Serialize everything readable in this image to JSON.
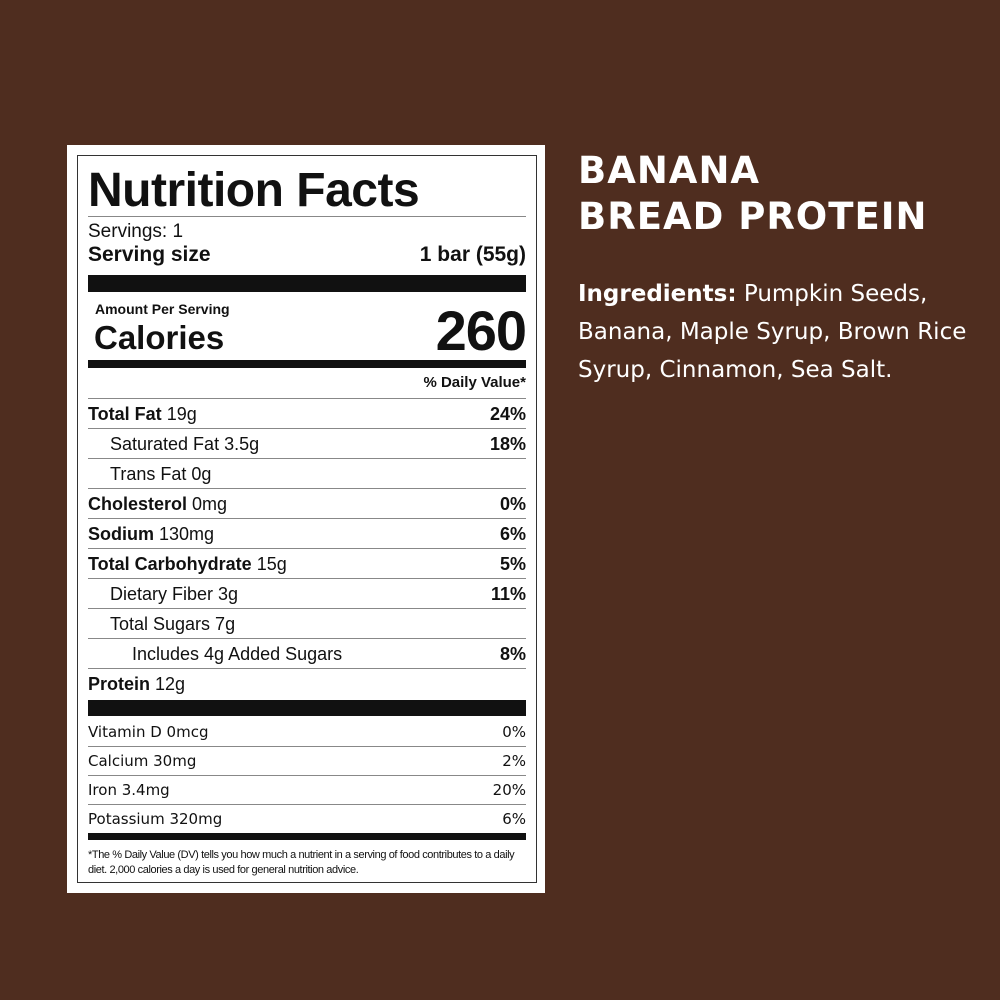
{
  "product": {
    "name_line1": "BANANA",
    "name_line2": "BREAD PROTEIN",
    "ingredients_label": "Ingredients:",
    "ingredients": "Pumpkin Seeds, Banana, Maple Syrup, Brown Rice Syrup, Cinnamon, Sea Salt."
  },
  "facts": {
    "title": "Nutrition Facts",
    "servings": "Servings: 1",
    "serving_size_label": "Serving size",
    "serving_size": "1 bar (55g)",
    "amount_per_serving": "Amount Per Serving",
    "calories_label": "Calories",
    "calories": "260",
    "dv_header": "% Daily Value*",
    "nutrients": [
      {
        "name": "Total Fat",
        "amount": "19g",
        "dv": "24%",
        "bold": true,
        "indent": 0
      },
      {
        "name": "Saturated Fat 3.5g",
        "amount": "",
        "dv": "18%",
        "bold": false,
        "indent": 1
      },
      {
        "name": "Trans Fat 0g",
        "amount": "",
        "dv": "",
        "bold": false,
        "indent": 1
      },
      {
        "name": "Cholesterol",
        "amount": "0mg",
        "dv": "0%",
        "bold": true,
        "indent": 0
      },
      {
        "name": "Sodium",
        "amount": "130mg",
        "dv": "6%",
        "bold": true,
        "indent": 0
      },
      {
        "name": "Total Carbohydrate",
        "amount": "15g",
        "dv": "5%",
        "bold": true,
        "indent": 0
      },
      {
        "name": "Dietary Fiber 3g",
        "amount": "",
        "dv": "11%",
        "bold": false,
        "indent": 1
      },
      {
        "name": "Total Sugars 7g",
        "amount": "",
        "dv": "",
        "bold": false,
        "indent": 1
      },
      {
        "name": "Includes 4g Added Sugars",
        "amount": "",
        "dv": "8%",
        "bold": false,
        "indent": 2
      },
      {
        "name": "Protein",
        "amount": "12g",
        "dv": "",
        "bold": true,
        "indent": 0
      }
    ],
    "vitamins": [
      {
        "name": "Vitamin D  0mcg",
        "dv": "0%"
      },
      {
        "name": "Calcium  30mg",
        "dv": "2%"
      },
      {
        "name": "Iron  3.4mg",
        "dv": "20%"
      },
      {
        "name": "Potassium  320mg",
        "dv": "6%"
      }
    ],
    "footnote": "*The % Daily Value (DV) tells you how much a nutrient in a serving of food contributes to a daily diet. 2,000 calories a day is used for general nutrition advice."
  }
}
